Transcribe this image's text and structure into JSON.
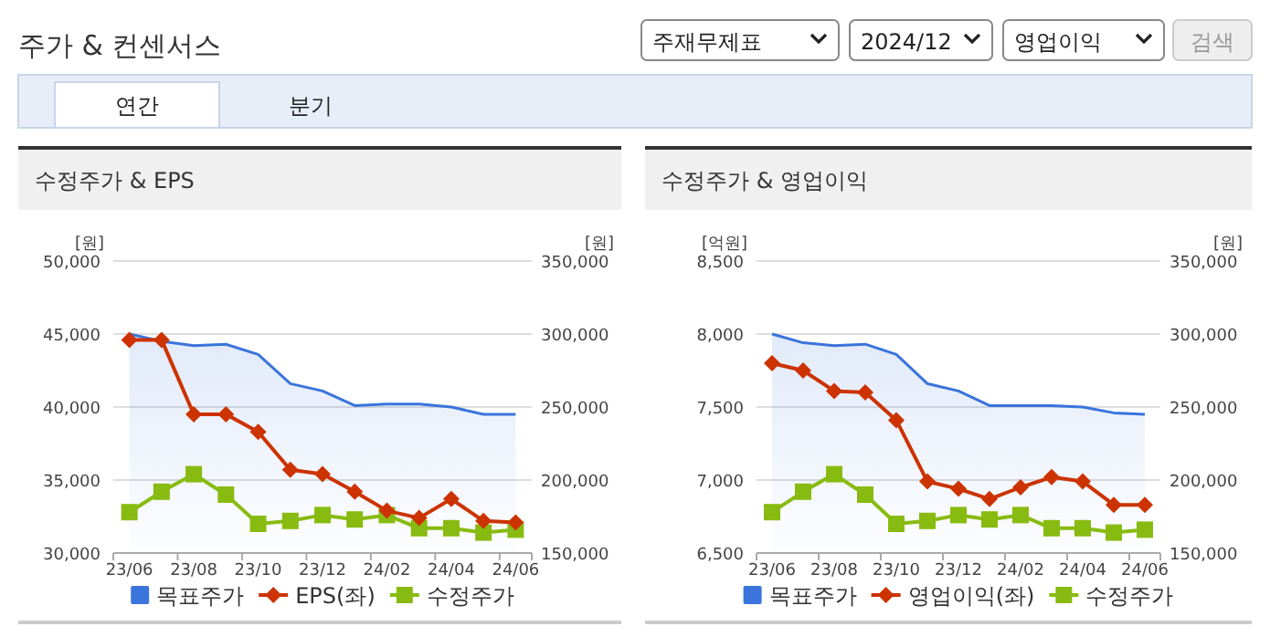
{
  "chart_data": [
    {
      "type": "other",
      "title": "주가 & 컨센서스",
      "annotations": [
        "주재무제표",
        "2024/12",
        "영업이익",
        "검색",
        "연간",
        "분기"
      ]
    },
    {
      "type": "line",
      "title": "수정주가 & EPS",
      "ylabel": "[원]",
      "y2label": "[원]",
      "categories": [
        "23/06",
        null,
        "23/08",
        null,
        "23/10",
        null,
        "23/12",
        null,
        "24/02",
        null,
        "24/04",
        null,
        "24/06"
      ],
      "series": [
        {
          "name": "목표주가",
          "type": "area",
          "axis": "y2",
          "color": "#3a74dc",
          "marker": "none",
          "values": [
            300000,
            295000,
            292000,
            293000,
            286000,
            266000,
            261000,
            251000,
            252000,
            252000,
            250000,
            245000,
            245000
          ]
        },
        {
          "name": "EPS(좌)",
          "type": "line",
          "color": "#cc3300",
          "marker": "diamond",
          "values": [
            44600,
            44600,
            39500,
            39500,
            38300,
            35700,
            35400,
            34200,
            32900,
            32400,
            33700,
            32200,
            32100
          ]
        },
        {
          "name": "수정주가",
          "type": "line",
          "axis": "y2",
          "color": "#88bb11",
          "marker": "square",
          "values": [
            178000,
            192000,
            204000,
            190000,
            170000,
            172000,
            176000,
            173000,
            176000,
            167000,
            167000,
            164000,
            166000
          ]
        }
      ],
      "ylim": [
        30000,
        50000
      ],
      "yticks": [
        {
          "value": 30000,
          "label": "30,000"
        },
        {
          "value": 35000,
          "label": "35,000"
        },
        {
          "value": 40000,
          "label": "40,000"
        },
        {
          "value": 45000,
          "label": "45,000"
        },
        {
          "value": 50000,
          "label": "50,000"
        }
      ],
      "y2lim": [
        150000,
        350000
      ],
      "y2ticks": [
        {
          "value": 150000,
          "label": "150,000"
        },
        {
          "value": 200000,
          "label": "200,000"
        },
        {
          "value": 250000,
          "label": "250,000"
        },
        {
          "value": 300000,
          "label": "300,000"
        },
        {
          "value": 350000,
          "label": "350,000"
        }
      ],
      "grid": "y",
      "legend": "bottom"
    },
    {
      "type": "line",
      "title": "수정주가 & 영업이익",
      "ylabel": "[억원]",
      "y2label": "[원]",
      "categories": [
        "23/06",
        null,
        "23/08",
        null,
        "23/10",
        null,
        "23/12",
        null,
        "24/02",
        null,
        "24/04",
        null,
        "24/06"
      ],
      "series": [
        {
          "name": "목표주가",
          "type": "area",
          "axis": "y2",
          "color": "#3a74dc",
          "marker": "none",
          "values": [
            300000,
            294000,
            292000,
            293000,
            286000,
            266000,
            261000,
            251000,
            251000,
            251000,
            250000,
            246000,
            245000
          ]
        },
        {
          "name": "영업이익(좌)",
          "type": "line",
          "color": "#cc3300",
          "marker": "diamond",
          "values": [
            7800,
            7750,
            7610,
            7600,
            7410,
            6990,
            6940,
            6870,
            6950,
            7020,
            6990,
            6830,
            6830
          ]
        },
        {
          "name": "수정주가",
          "type": "line",
          "axis": "y2",
          "color": "#88bb11",
          "marker": "square",
          "values": [
            178000,
            192000,
            204000,
            190000,
            170000,
            172000,
            176000,
            173000,
            176000,
            167000,
            167000,
            164000,
            166000
          ]
        }
      ],
      "ylim": [
        6500,
        8500
      ],
      "yticks": [
        {
          "value": 6500,
          "label": "6,500"
        },
        {
          "value": 7000,
          "label": "7,000"
        },
        {
          "value": 7500,
          "label": "7,500"
        },
        {
          "value": 8000,
          "label": "8,000"
        },
        {
          "value": 8500,
          "label": "8,500"
        }
      ],
      "y2lim": [
        150000,
        350000
      ],
      "y2ticks": [
        {
          "value": 150000,
          "label": "150,000"
        },
        {
          "value": 200000,
          "label": "200,000"
        },
        {
          "value": 250000,
          "label": "250,000"
        },
        {
          "value": 300000,
          "label": "300,000"
        },
        {
          "value": 350000,
          "label": "350,000"
        }
      ],
      "grid": "y",
      "legend": "bottom"
    }
  ]
}
